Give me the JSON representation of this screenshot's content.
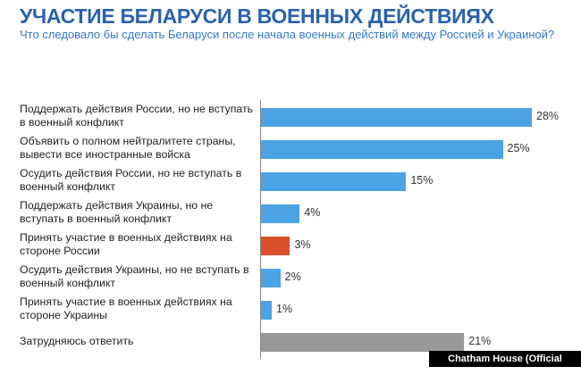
{
  "chart_data": {
    "type": "bar",
    "orientation": "horizontal",
    "title": "УЧАСТИЕ БЕЛАРУСИ В ВОЕННЫХ ДЕЙСТВИЯХ",
    "subtitle": "Что следовало бы сделать Беларуси после начала военных действий между Россией и Украиной?",
    "categories": [
      "Поддержать действия России, но не вступать в военный конфликт",
      "Объявить о полном нейтралитете страны, вывести все иностранные войска",
      "Осудить действия России, но не вступать в военный конфликт",
      "Поддержать действия Украины, но не вступать в военный конфликт",
      "Принять участие в военных действиях на стороне России",
      "Осудить действия Украины, но не вступать в военный конфликт",
      "Принять участие в военных действиях на стороне Украины",
      "Затрудняюсь ответить"
    ],
    "values": [
      28,
      25,
      15,
      4,
      3,
      2,
      1,
      21
    ],
    "value_labels": [
      "28%",
      "25%",
      "15%",
      "4%",
      "3%",
      "2%",
      "1%",
      "21%"
    ],
    "colors": [
      "#4ba3e3",
      "#4ba3e3",
      "#4ba3e3",
      "#4ba3e3",
      "#d9502b",
      "#4ba3e3",
      "#4ba3e3",
      "#999999"
    ],
    "grid": false,
    "xlim": [
      0,
      28
    ]
  },
  "source": "Chatham House (Official publication)"
}
